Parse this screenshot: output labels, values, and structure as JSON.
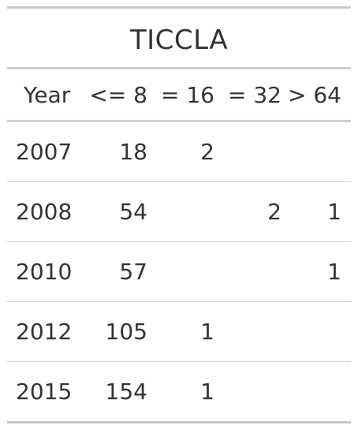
{
  "table": {
    "title": "TICCLA",
    "headers": [
      "Year",
      "<= 8",
      "= 16",
      "= 32",
      "> 64"
    ],
    "rows": [
      [
        "2007",
        "18",
        "2",
        "",
        ""
      ],
      [
        "2008",
        "54",
        "",
        "2",
        "1"
      ],
      [
        "2010",
        "57",
        "",
        "",
        "1"
      ],
      [
        "2012",
        "105",
        "1",
        "",
        ""
      ],
      [
        "2015",
        "154",
        "1",
        "",
        ""
      ]
    ]
  }
}
